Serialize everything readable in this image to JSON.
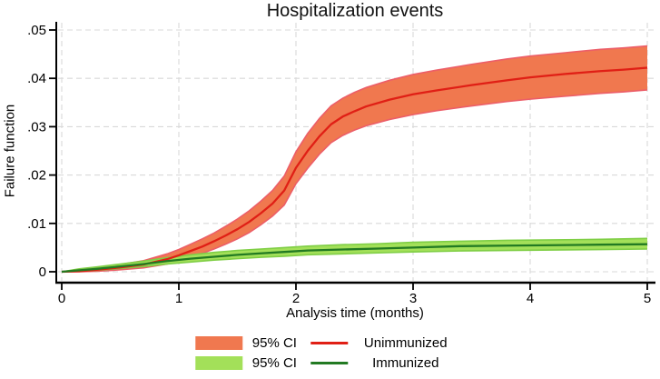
{
  "chart_data": {
    "type": "line",
    "title": "Hospitalization events",
    "xlabel": "Analysis time (months)",
    "ylabel": "Failure function",
    "xlim": [
      0,
      5
    ],
    "ylim": [
      0,
      0.05
    ],
    "x_ticks": {
      "values": [
        0,
        1,
        2,
        3,
        4,
        5
      ],
      "labels": [
        "0",
        "1",
        "2",
        "3",
        "4",
        "5"
      ]
    },
    "y_ticks": {
      "values": [
        0,
        0.01,
        0.02,
        0.03,
        0.04,
        0.05
      ],
      "labels": [
        "0",
        ".01",
        ".02",
        ".03",
        ".04",
        ".05"
      ]
    },
    "grid": "dashed horizontal and vertical gridlines at every tick",
    "legend_position": "bottom center",
    "series": [
      {
        "name": "Unimmunized",
        "ci_label": "95% CI",
        "line_color": "#e01f15",
        "fill_color": "#f0784f",
        "edge_color": "#ec5e68",
        "points_format": [
          "t_months",
          "ci_lower",
          "estimate",
          "ci_upper"
        ],
        "points": [
          [
            0,
            0,
            0,
            0
          ],
          [
            0.15,
            0,
            0.0001,
            0.0003
          ],
          [
            0.3,
            0.0001,
            0.0004,
            0.0008
          ],
          [
            0.5,
            0.0004,
            0.0009,
            0.0015
          ],
          [
            0.7,
            0.0008,
            0.0015,
            0.0023
          ],
          [
            0.9,
            0.0016,
            0.0026,
            0.0037
          ],
          [
            1.0,
            0.0023,
            0.0034,
            0.0046
          ],
          [
            1.1,
            0.003,
            0.0043,
            0.0057
          ],
          [
            1.2,
            0.0038,
            0.0052,
            0.0068
          ],
          [
            1.3,
            0.0047,
            0.0063,
            0.008
          ],
          [
            1.4,
            0.0057,
            0.0075,
            0.0094
          ],
          [
            1.5,
            0.0068,
            0.0088,
            0.0109
          ],
          [
            1.6,
            0.0081,
            0.0103,
            0.0126
          ],
          [
            1.7,
            0.0097,
            0.0121,
            0.0146
          ],
          [
            1.8,
            0.0115,
            0.0141,
            0.0168
          ],
          [
            1.9,
            0.0138,
            0.0168,
            0.0198
          ],
          [
            2.0,
            0.0182,
            0.0215,
            0.0248
          ],
          [
            2.1,
            0.0214,
            0.025,
            0.0286
          ],
          [
            2.2,
            0.0243,
            0.028,
            0.0317
          ],
          [
            2.3,
            0.0267,
            0.0305,
            0.0343
          ],
          [
            2.4,
            0.0282,
            0.0321,
            0.0359
          ],
          [
            2.5,
            0.0293,
            0.0332,
            0.0371
          ],
          [
            2.6,
            0.0302,
            0.0342,
            0.0381
          ],
          [
            2.8,
            0.0315,
            0.0356,
            0.0396
          ],
          [
            3.0,
            0.0325,
            0.0367,
            0.0408
          ],
          [
            3.2,
            0.0333,
            0.0375,
            0.0417
          ],
          [
            3.5,
            0.0343,
            0.0386,
            0.0429
          ],
          [
            3.8,
            0.0352,
            0.0396,
            0.044
          ],
          [
            4.0,
            0.0357,
            0.0402,
            0.0446
          ],
          [
            4.3,
            0.0363,
            0.0409,
            0.0453
          ],
          [
            4.6,
            0.0369,
            0.0415,
            0.046
          ],
          [
            4.8,
            0.0372,
            0.0418,
            0.0463
          ],
          [
            5.0,
            0.0376,
            0.0422,
            0.0467
          ]
        ]
      },
      {
        "name": "Immunized",
        "ci_label": "95% CI",
        "line_color": "#227a22",
        "fill_color": "#a3e059",
        "edge_color": "#7fce45",
        "points_format": [
          "t_months",
          "ci_lower",
          "estimate",
          "ci_upper"
        ],
        "points": [
          [
            0,
            0,
            0,
            0
          ],
          [
            0.15,
            0.0001,
            0.0003,
            0.0006
          ],
          [
            0.3,
            0.0003,
            0.0006,
            0.001
          ],
          [
            0.5,
            0.0007,
            0.0011,
            0.0016
          ],
          [
            0.7,
            0.0011,
            0.0016,
            0.0022
          ],
          [
            0.9,
            0.0016,
            0.0022,
            0.0029
          ],
          [
            1.1,
            0.002,
            0.0027,
            0.0035
          ],
          [
            1.3,
            0.0024,
            0.0031,
            0.004
          ],
          [
            1.5,
            0.0027,
            0.0035,
            0.0044
          ],
          [
            1.7,
            0.003,
            0.0038,
            0.0047
          ],
          [
            1.9,
            0.0032,
            0.0041,
            0.005
          ],
          [
            2.1,
            0.0035,
            0.0044,
            0.0053
          ],
          [
            2.4,
            0.0037,
            0.0046,
            0.0056
          ],
          [
            2.7,
            0.0039,
            0.0048,
            0.0058
          ],
          [
            3.0,
            0.0041,
            0.005,
            0.0061
          ],
          [
            3.4,
            0.0043,
            0.0053,
            0.0063
          ],
          [
            3.8,
            0.0044,
            0.0054,
            0.0065
          ],
          [
            4.2,
            0.0045,
            0.0055,
            0.0066
          ],
          [
            4.6,
            0.0046,
            0.0056,
            0.0067
          ],
          [
            5.0,
            0.0047,
            0.0057,
            0.0069
          ]
        ]
      }
    ]
  },
  "legend": {
    "rows": [
      {
        "ci_label": "95% CI",
        "series_label": "Unimmunized"
      },
      {
        "ci_label": "95% CI",
        "series_label": "Immunized"
      }
    ]
  },
  "colors": {
    "grid": "#d9d9d9",
    "axis": "#000000",
    "text": "#000000",
    "background": "#ffffff"
  }
}
